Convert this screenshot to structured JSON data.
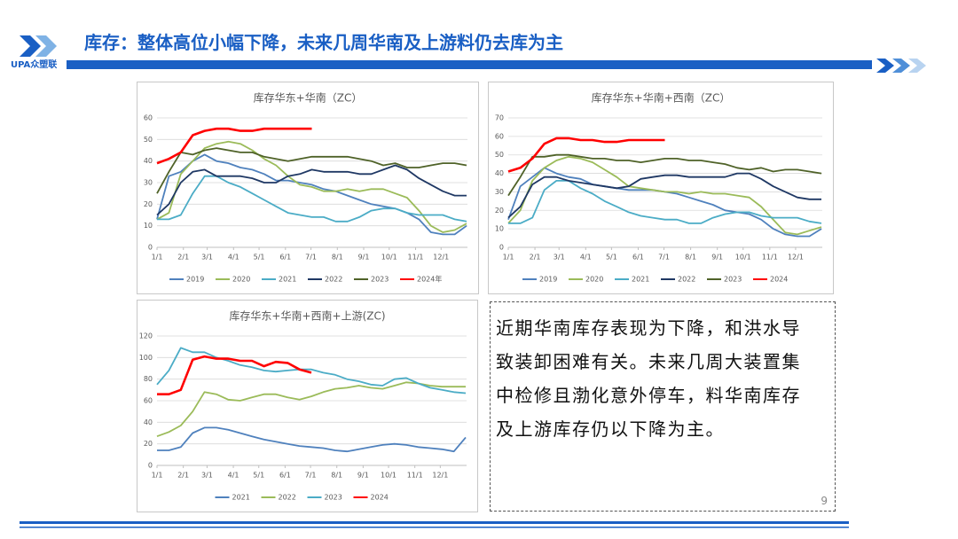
{
  "header": {
    "title": "库存：整体高位小幅下降，未来几周华南及上游料仍去库为主",
    "logo": "UPA众塑联"
  },
  "note": {
    "lines": [
      "近期华南库存表现为下降，和洪水导",
      "致装卸困难有关。未来几周大装置集",
      "中检修且渤化意外停车，料华南库存",
      "及上游库存仍以下降为主。"
    ],
    "page_number": "9"
  },
  "chart_data": [
    {
      "type": "line",
      "title": "库存华东+华南（ZC）",
      "grid": true,
      "legend": "bottom",
      "x": [
        0,
        14,
        28,
        42,
        56,
        70,
        84,
        98,
        112,
        126,
        140,
        154,
        168,
        182,
        196,
        210,
        224,
        238,
        252,
        266,
        280,
        294,
        308,
        322,
        336,
        350,
        364
      ],
      "xlim": [
        0,
        365
      ],
      "xticks": [
        {
          "value": 0,
          "label": "1/1"
        },
        {
          "value": 31,
          "label": "2/1"
        },
        {
          "value": 59,
          "label": "3/1"
        },
        {
          "value": 90,
          "label": "4/1"
        },
        {
          "value": 120,
          "label": "5/1"
        },
        {
          "value": 151,
          "label": "6/1"
        },
        {
          "value": 181,
          "label": "7/1"
        },
        {
          "value": 212,
          "label": "8/1"
        },
        {
          "value": 243,
          "label": "9/1"
        },
        {
          "value": 273,
          "label": "10/1"
        },
        {
          "value": 304,
          "label": "11/1"
        },
        {
          "value": 334,
          "label": "12/1"
        }
      ],
      "ylim": [
        0,
        60
      ],
      "yticks": [
        0,
        10,
        20,
        30,
        40,
        50,
        60
      ],
      "series": [
        {
          "name": "2019",
          "color": "#4f81bd",
          "values": [
            13,
            33,
            35,
            40,
            43,
            40,
            39,
            37,
            36,
            34,
            31,
            31,
            30,
            29,
            27,
            26,
            24,
            22,
            20,
            19,
            18,
            16,
            13,
            7,
            6,
            6,
            10
          ]
        },
        {
          "name": "2020",
          "color": "#9bbb59",
          "values": [
            13,
            16,
            34,
            40,
            46,
            48,
            49,
            48,
            45,
            41,
            38,
            33,
            29,
            28,
            26,
            26,
            27,
            26,
            27,
            27,
            25,
            23,
            17,
            10,
            7,
            8,
            11
          ]
        },
        {
          "name": "2021",
          "color": "#4bacc6",
          "values": [
            13,
            13,
            15,
            25,
            33,
            33,
            30,
            28,
            25,
            22,
            19,
            16,
            15,
            14,
            14,
            12,
            12,
            14,
            17,
            18,
            18,
            16,
            15,
            15,
            15,
            13,
            12
          ]
        },
        {
          "name": "2022",
          "color": "#1f3864",
          "values": [
            15,
            20,
            30,
            35,
            36,
            33,
            33,
            33,
            32,
            30,
            30,
            33,
            34,
            36,
            35,
            35,
            35,
            34,
            34,
            36,
            38,
            36,
            32,
            29,
            26,
            24,
            24
          ]
        },
        {
          "name": "2023",
          "color": "#4f6228",
          "values": [
            25,
            35,
            44,
            43,
            45,
            46,
            45,
            44,
            44,
            42,
            41,
            40,
            41,
            42,
            42,
            42,
            42,
            41,
            40,
            38,
            39,
            37,
            37,
            38,
            39,
            39,
            38
          ]
        },
        {
          "name": "2024年",
          "color": "#ff0000",
          "values": [
            39,
            41,
            44,
            52,
            54,
            55,
            55,
            54,
            54,
            55,
            55,
            55,
            55,
            55,
            null,
            null,
            null,
            null,
            null,
            null,
            null,
            null,
            null,
            null,
            null,
            null,
            null
          ]
        }
      ]
    },
    {
      "type": "line",
      "title": "库存华东+华南+西南（ZC）",
      "grid": true,
      "legend": "bottom",
      "x": [
        0,
        14,
        28,
        42,
        56,
        70,
        84,
        98,
        112,
        126,
        140,
        154,
        168,
        182,
        196,
        210,
        224,
        238,
        252,
        266,
        280,
        294,
        308,
        322,
        336,
        350,
        364
      ],
      "xlim": [
        0,
        365
      ],
      "xticks": [
        {
          "value": 0,
          "label": "1/1"
        },
        {
          "value": 31,
          "label": "2/1"
        },
        {
          "value": 59,
          "label": "3/1"
        },
        {
          "value": 90,
          "label": "4/1"
        },
        {
          "value": 120,
          "label": "5/1"
        },
        {
          "value": 151,
          "label": "6/1"
        },
        {
          "value": 181,
          "label": "7/1"
        },
        {
          "value": 212,
          "label": "8/1"
        },
        {
          "value": 243,
          "label": "9/1"
        },
        {
          "value": 273,
          "label": "10/1"
        },
        {
          "value": 304,
          "label": "11/1"
        },
        {
          "value": 334,
          "label": "12/1"
        }
      ],
      "ylim": [
        0,
        70
      ],
      "yticks": [
        0,
        10,
        20,
        30,
        40,
        50,
        60,
        70
      ],
      "series": [
        {
          "name": "2019",
          "color": "#4f81bd",
          "values": [
            15,
            33,
            38,
            43,
            40,
            38,
            37,
            34,
            33,
            32,
            31,
            31,
            31,
            30,
            29,
            27,
            25,
            23,
            20,
            19,
            18,
            15,
            10,
            7,
            6,
            6,
            10
          ]
        },
        {
          "name": "2020",
          "color": "#9bbb59",
          "values": [
            13,
            20,
            36,
            43,
            47,
            49,
            48,
            46,
            42,
            38,
            33,
            32,
            31,
            30,
            30,
            29,
            30,
            29,
            29,
            28,
            27,
            22,
            15,
            8,
            7,
            9,
            11
          ]
        },
        {
          "name": "2021",
          "color": "#4bacc6",
          "values": [
            13,
            13,
            16,
            31,
            36,
            36,
            32,
            29,
            25,
            22,
            19,
            17,
            16,
            15,
            15,
            13,
            13,
            16,
            18,
            19,
            19,
            17,
            16,
            16,
            16,
            14,
            13
          ]
        },
        {
          "name": "2022",
          "color": "#1f3864",
          "values": [
            16,
            22,
            34,
            38,
            38,
            36,
            35,
            34,
            33,
            32,
            33,
            37,
            38,
            39,
            39,
            38,
            38,
            38,
            38,
            40,
            40,
            37,
            33,
            30,
            27,
            26,
            26
          ]
        },
        {
          "name": "2023",
          "color": "#4f6228",
          "values": [
            28,
            38,
            49,
            49,
            50,
            50,
            49,
            48,
            48,
            47,
            47,
            46,
            47,
            48,
            48,
            47,
            47,
            46,
            45,
            43,
            42,
            43,
            41,
            42,
            42,
            41,
            40
          ]
        },
        {
          "name": "2024",
          "color": "#ff0000",
          "values": [
            41,
            43,
            48,
            56,
            59,
            59,
            58,
            58,
            57,
            57,
            58,
            58,
            58,
            58,
            null,
            null,
            null,
            null,
            null,
            null,
            null,
            null,
            null,
            null,
            null,
            null,
            null
          ]
        }
      ]
    },
    {
      "type": "line",
      "title": "库存华东+华南+西南+上游(ZC)",
      "grid": true,
      "legend": "bottom",
      "x": [
        0,
        14,
        28,
        42,
        56,
        70,
        84,
        98,
        112,
        126,
        140,
        154,
        168,
        182,
        196,
        210,
        224,
        238,
        252,
        266,
        280,
        294,
        308,
        322,
        336,
        350,
        364
      ],
      "xlim": [
        0,
        365
      ],
      "xticks": [
        {
          "value": 0,
          "label": "1/1"
        },
        {
          "value": 31,
          "label": "2/1"
        },
        {
          "value": 59,
          "label": "3/1"
        },
        {
          "value": 90,
          "label": "4/1"
        },
        {
          "value": 120,
          "label": "5/1"
        },
        {
          "value": 151,
          "label": "6/1"
        },
        {
          "value": 181,
          "label": "7/1"
        },
        {
          "value": 212,
          "label": "8/1"
        },
        {
          "value": 243,
          "label": "9/1"
        },
        {
          "value": 273,
          "label": "10/1"
        },
        {
          "value": 304,
          "label": "11/1"
        },
        {
          "value": 334,
          "label": "12/1"
        }
      ],
      "ylim": [
        0,
        120
      ],
      "yticks": [
        0,
        20,
        40,
        60,
        80,
        100,
        120
      ],
      "series": [
        {
          "name": "2021",
          "color": "#4f81bd",
          "values": [
            14,
            14,
            17,
            30,
            35,
            35,
            33,
            30,
            27,
            24,
            22,
            20,
            18,
            17,
            16,
            14,
            13,
            15,
            17,
            19,
            20,
            19,
            17,
            16,
            15,
            13,
            26
          ]
        },
        {
          "name": "2022",
          "color": "#9bbb59",
          "values": [
            27,
            31,
            37,
            50,
            68,
            66,
            61,
            60,
            63,
            66,
            66,
            63,
            61,
            64,
            68,
            71,
            72,
            74,
            72,
            71,
            74,
            77,
            76,
            74,
            73,
            73,
            73
          ]
        },
        {
          "name": "2023",
          "color": "#4bacc6",
          "values": [
            75,
            88,
            109,
            105,
            105,
            100,
            97,
            93,
            91,
            88,
            87,
            88,
            89,
            89,
            86,
            84,
            80,
            78,
            75,
            74,
            80,
            81,
            76,
            72,
            70,
            68,
            67
          ]
        },
        {
          "name": "2024",
          "color": "#ff0000",
          "values": [
            66,
            66,
            70,
            98,
            101,
            99,
            99,
            97,
            97,
            92,
            96,
            95,
            89,
            86,
            null,
            null,
            null,
            null,
            null,
            null,
            null,
            null,
            null,
            null,
            null,
            null,
            null
          ]
        }
      ]
    }
  ]
}
